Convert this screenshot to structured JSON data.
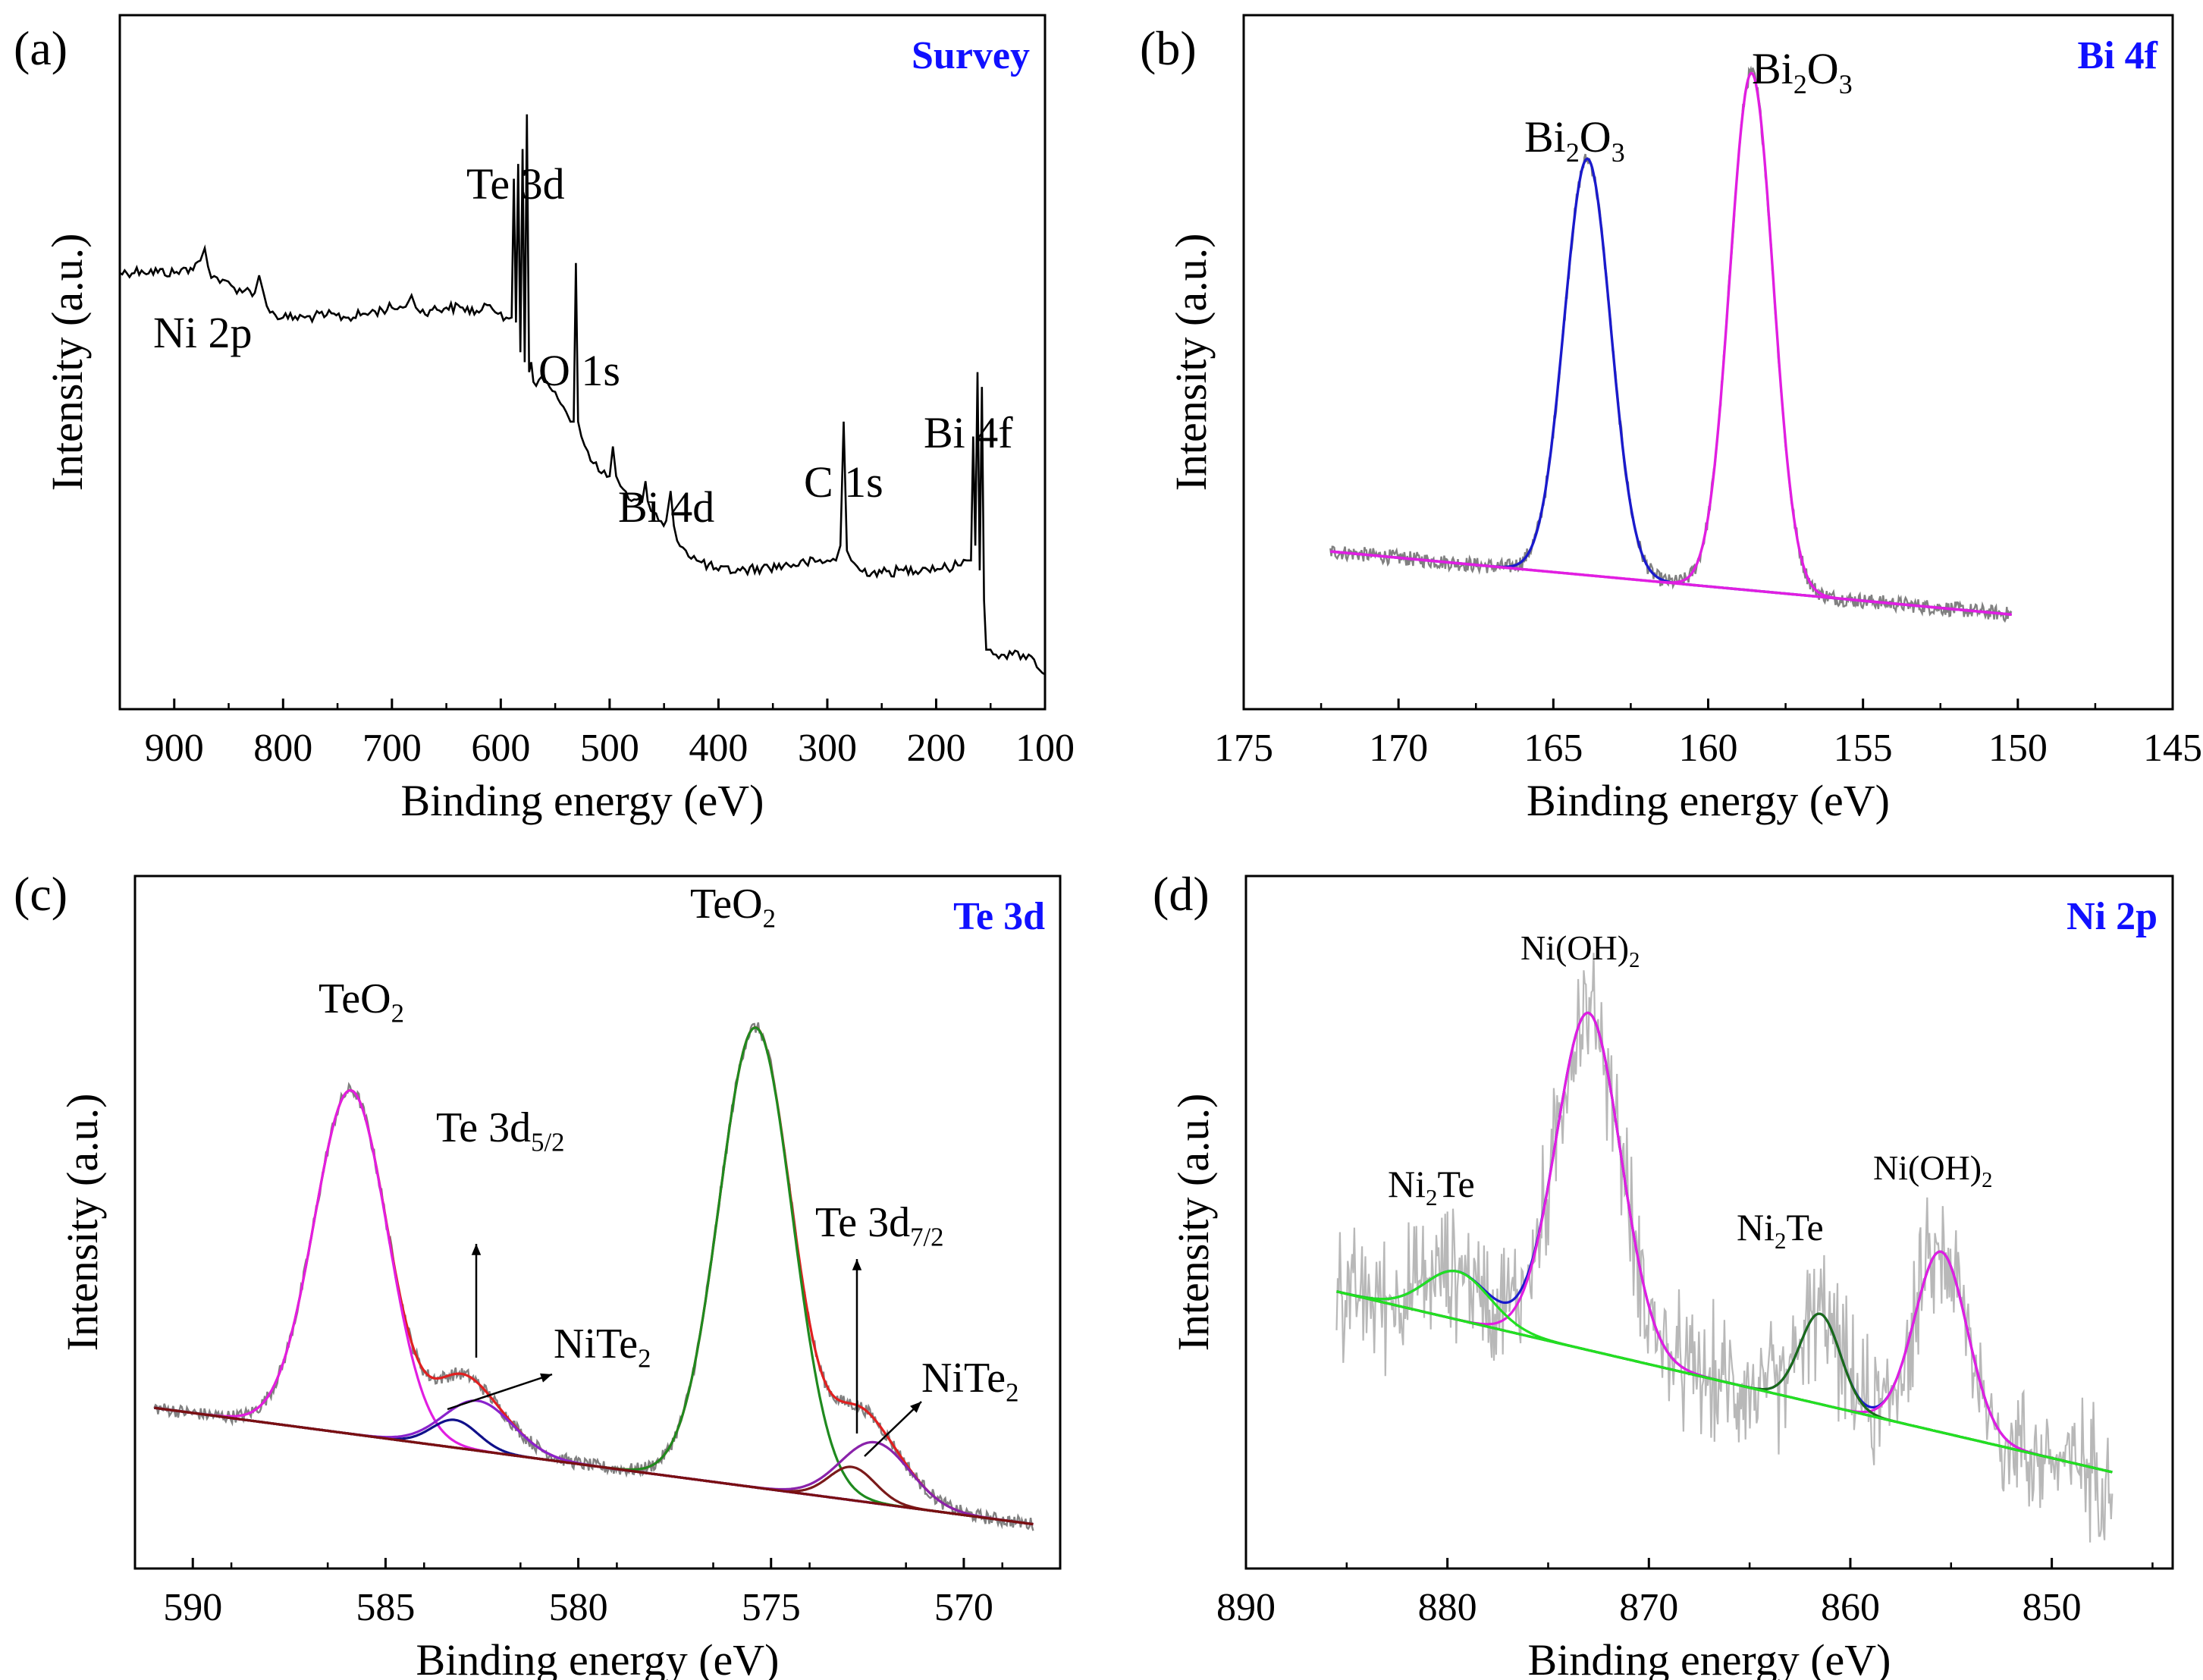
{
  "figure": {
    "description_free": true
  },
  "chart_data": [
    {
      "panel": "(a)",
      "type": "line",
      "title": "Survey",
      "xlabel": "Binding energy (eV)",
      "ylabel": "Intensity (a.u.)",
      "xlim": [
        950,
        100
      ],
      "xticks": [
        900,
        800,
        700,
        600,
        500,
        400,
        300,
        200,
        100
      ],
      "ylim": [
        0,
        1
      ],
      "peaks": [
        {
          "label": "Ni 2p",
          "x": 870
        },
        {
          "label": "Te 3d",
          "x": 583
        },
        {
          "label": "O 1s",
          "x": 531
        },
        {
          "label": "Bi 4d",
          "x": 455
        },
        {
          "label": "C 1s",
          "x": 285
        },
        {
          "label": "Bi 4f",
          "x": 160
        }
      ],
      "series": [
        {
          "name": "Survey spectrum",
          "color": "#000000",
          "x": [
            950,
            930,
            900,
            885,
            876,
            872,
            866,
            858,
            853,
            845,
            835,
            826,
            822,
            818,
            812,
            800,
            780,
            760,
            740,
            720,
            700,
            690,
            682,
            678,
            674,
            665,
            650,
            635,
            620,
            610,
            600,
            595,
            590,
            588,
            586,
            584,
            582,
            580,
            578,
            576,
            574,
            572,
            570,
            560,
            550,
            540,
            536,
            533,
            531,
            529,
            526,
            520,
            510,
            500,
            497,
            494,
            490,
            480,
            470,
            467,
            465,
            462,
            455,
            448,
            444,
            441,
            438,
            430,
            420,
            400,
            380,
            360,
            340,
            320,
            300,
            292,
            288,
            285,
            282,
            278,
            270,
            250,
            230,
            210,
            190,
            180,
            172,
            168,
            166,
            164,
            162,
            160,
            158,
            156,
            154,
            150,
            140,
            130,
            120,
            110,
            100
          ],
          "y": [
            0.88,
            0.885,
            0.88,
            0.89,
            0.905,
            0.93,
            0.87,
            0.86,
            0.865,
            0.85,
            0.845,
            0.84,
            0.875,
            0.84,
            0.8,
            0.79,
            0.79,
            0.795,
            0.79,
            0.8,
            0.81,
            0.81,
            0.835,
            0.81,
            0.8,
            0.805,
            0.81,
            0.81,
            0.8,
            0.815,
            0.8,
            0.79,
            0.79,
            1.07,
            0.78,
            1.1,
            0.72,
            1.13,
            0.7,
            1.2,
            0.68,
            0.7,
            0.66,
            0.66,
            0.64,
            0.6,
            0.58,
            0.58,
            0.9,
            0.58,
            0.55,
            0.52,
            0.48,
            0.47,
            0.53,
            0.47,
            0.45,
            0.42,
            0.42,
            0.46,
            0.42,
            0.4,
            0.38,
            0.38,
            0.44,
            0.37,
            0.34,
            0.32,
            0.3,
            0.28,
            0.28,
            0.285,
            0.29,
            0.295,
            0.3,
            0.3,
            0.33,
            0.58,
            0.32,
            0.3,
            0.28,
            0.275,
            0.28,
            0.285,
            0.285,
            0.29,
            0.3,
            0.3,
            0.55,
            0.33,
            0.68,
            0.28,
            0.65,
            0.22,
            0.12,
            0.12,
            0.11,
            0.11,
            0.11,
            0.1,
            0.07
          ]
        }
      ]
    },
    {
      "panel": "(b)",
      "type": "line",
      "title": "Bi 4f",
      "xlabel": "Binding energy (eV)",
      "ylabel": "Intensity (a.u.)",
      "xlim": [
        175,
        145
      ],
      "xticks": [
        175,
        170,
        165,
        160,
        155,
        150,
        145
      ],
      "ylim": [
        0,
        1
      ],
      "peaks": [
        {
          "label": "Bi2O3",
          "display_main": "Bi",
          "display_sub1": "2",
          "display_mid": "O",
          "display_sub2": "3",
          "x": 163.9
        },
        {
          "label": "Bi2O3",
          "display_main": "Bi",
          "display_sub1": "2",
          "display_mid": "O",
          "display_sub2": "3",
          "x": 158.6
        }
      ],
      "series": [
        {
          "name": "Raw data",
          "color": "#808080",
          "noise": 0.012,
          "baseline": [
            0.25,
            0.15
          ],
          "peaks": [
            [
              163.9,
              0.66,
              0.75
            ],
            [
              158.6,
              0.82,
              0.7
            ]
          ]
        },
        {
          "name": "Fit Bi2O3 (163.9 eV)",
          "color": "#1a1acc",
          "baseline": [
            0.25,
            0.15
          ],
          "peaks": [
            [
              163.9,
              0.66,
              0.75
            ]
          ]
        },
        {
          "name": "Fit Bi2O3 (158.6 eV)",
          "color": "#e11ee1",
          "baseline": [
            0.25,
            0.15
          ],
          "peaks": [
            [
              158.6,
              0.82,
              0.7
            ]
          ]
        },
        {
          "name": "Background",
          "color": "#e11ee1",
          "baseline": [
            0.25,
            0.15
          ],
          "peaks": []
        }
      ],
      "x_range_data": [
        172.2,
        150.2
      ]
    },
    {
      "panel": "(c)",
      "type": "line",
      "title": "Te 3d",
      "xlabel": "Binding energy (eV)",
      "ylabel": "Intensity (a.u.)",
      "xlim": [
        591.5,
        567.5
      ],
      "xticks": [
        590,
        585,
        580,
        575,
        570
      ],
      "ylim": [
        0,
        1
      ],
      "annotations": [
        {
          "label": "TeO2",
          "display_main": "TeO",
          "display_sub": "2",
          "x": 585.9
        },
        {
          "label": "Te 3d5/2",
          "display_main": "Te 3d",
          "display_sub": "5/2",
          "x": 582.9
        },
        {
          "label": "NiTe2",
          "display_main": "NiTe",
          "display_sub": "2",
          "x": 582.5
        },
        {
          "label": "TeO2",
          "display_main": "TeO",
          "display_sub": "2",
          "x": 575.4
        },
        {
          "label": "Te 3d7/2",
          "display_main": "Te 3d",
          "display_sub": "7/2",
          "x": 572.6
        },
        {
          "label": "NiTe2",
          "display_main": "NiTe",
          "display_sub": "2",
          "x": 572.2
        }
      ],
      "series": [
        {
          "name": "Raw data",
          "color": "#808080",
          "noise": 0.012,
          "baseline": [
            0.29,
            0.08
          ],
          "peaks": [
            [
              585.9,
              0.62,
              0.95
            ],
            [
              583.2,
              0.05,
              0.6
            ],
            [
              582.6,
              0.09,
              0.9
            ],
            [
              575.4,
              0.83,
              0.95
            ],
            [
              572.9,
              0.06,
              0.6
            ],
            [
              572.3,
              0.11,
              0.9
            ]
          ]
        },
        {
          "name": "Envelope",
          "color": "#e02020",
          "baseline": [
            0.29,
            0.08
          ],
          "peaks": [
            [
              585.9,
              0.62,
              0.95
            ],
            [
              583.2,
              0.05,
              0.6
            ],
            [
              582.6,
              0.09,
              0.9
            ],
            [
              575.4,
              0.83,
              0.95
            ],
            [
              572.9,
              0.06,
              0.6
            ],
            [
              572.3,
              0.11,
              0.9
            ]
          ]
        },
        {
          "name": "TeO2 3d5/2",
          "color": "#e11ee1",
          "baseline": [
            0.29,
            0.08
          ],
          "peaks": [
            [
              585.9,
              0.62,
              0.95
            ]
          ]
        },
        {
          "name": "NiTe2 (dark blue)",
          "color": "#10108a",
          "baseline": [
            0.29,
            0.08
          ],
          "peaks": [
            [
              583.2,
              0.05,
              0.6
            ]
          ]
        },
        {
          "name": "NiTe2 (purple)",
          "color": "#8a22cc",
          "baseline": [
            0.29,
            0.08
          ],
          "peaks": [
            [
              582.6,
              0.09,
              0.9
            ]
          ]
        },
        {
          "name": "TeO2 3d3/2",
          "color": "#1f8a1f",
          "baseline": [
            0.29,
            0.08
          ],
          "peaks": [
            [
              575.4,
              0.83,
              0.95
            ]
          ]
        },
        {
          "name": "NiTe2 (maroon)",
          "color": "#7a1a1a",
          "baseline": [
            0.29,
            0.08
          ],
          "peaks": [
            [
              572.9,
              0.06,
              0.6
            ]
          ]
        },
        {
          "name": "NiTe2 (violet)",
          "color": "#8a22aa",
          "baseline": [
            0.29,
            0.08
          ],
          "peaks": [
            [
              572.3,
              0.11,
              0.9
            ]
          ]
        },
        {
          "name": "Background",
          "color": "#7a1010",
          "baseline": [
            0.29,
            0.08
          ],
          "peaks": []
        }
      ],
      "x_range_data": [
        591.0,
        568.2
      ]
    },
    {
      "panel": "(d)",
      "type": "line",
      "title": "Ni 2p",
      "xlabel": "Binding energy (eV)",
      "ylabel": "Intensity (a.u.)",
      "xlim": [
        890,
        844
      ],
      "xticks": [
        890,
        880,
        870,
        860,
        850
      ],
      "ylim": [
        0,
        1
      ],
      "annotations": [
        {
          "label": "Ni(OH)2",
          "display_main": "Ni(OH)",
          "display_sub": "2",
          "x": 873
        },
        {
          "label": "Ni2Te",
          "display_main": "Ni",
          "display_sub": "2",
          "display_rest": "Te",
          "x": 879.5
        },
        {
          "label": "Ni2Te",
          "display_main": "Ni",
          "display_sub": "2",
          "display_rest": "Te",
          "x": 861.5
        },
        {
          "label": "Ni(OH)2",
          "display_main": "Ni(OH)",
          "display_sub": "2",
          "x": 855.5
        }
      ],
      "series": [
        {
          "name": "Raw data",
          "color": "#b8b8b8",
          "noise": 0.09,
          "baseline": [
            0.46,
            0.16
          ],
          "peaks": [
            [
              873,
              0.56,
              1.6
            ],
            [
              879.5,
              0.08,
              1.6
            ],
            [
              861.5,
              0.15,
              1.0
            ],
            [
              855.5,
              0.3,
              1.3
            ]
          ]
        },
        {
          "name": "Envelope",
          "color": "#1a1acc",
          "baseline": [
            0.46,
            0.16
          ],
          "peaks": [
            [
              873,
              0.56,
              1.6
            ],
            [
              879.5,
              0.08,
              1.6
            ],
            [
              861.5,
              0.15,
              1.0
            ],
            [
              855.5,
              0.3,
              1.3
            ]
          ]
        },
        {
          "name": "Ni(OH)2",
          "color": "#e11ee1",
          "baseline": [
            0.46,
            0.16
          ],
          "peaks": [
            [
              873,
              0.56,
              1.6
            ],
            [
              855.5,
              0.3,
              1.3
            ]
          ]
        },
        {
          "name": "Ni2Te (879.5 eV)",
          "color": "#22e022",
          "baseline": [
            0.46,
            0.16
          ],
          "peaks": [
            [
              879.5,
              0.08,
              1.6
            ]
          ]
        },
        {
          "name": "Ni2Te (861.5 eV)",
          "color": "#1a6b1a",
          "baseline": [
            0.46,
            0.16
          ],
          "peaks": [
            [
              861.5,
              0.15,
              1.0
            ]
          ]
        },
        {
          "name": "Background",
          "color": "#1a6b1a",
          "baseline": [
            0.46,
            0.16
          ],
          "peaks": []
        },
        {
          "name": "Background (light)",
          "color": "#22e022",
          "baseline": [
            0.46,
            0.16
          ],
          "peaks": []
        }
      ],
      "x_range_data": [
        885.5,
        847.0
      ]
    }
  ]
}
